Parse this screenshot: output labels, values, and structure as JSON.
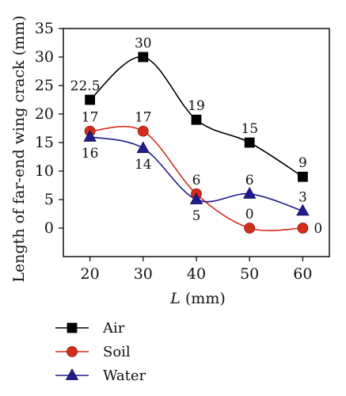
{
  "chart_data": {
    "type": "line",
    "x": [
      20,
      30,
      40,
      50,
      60
    ],
    "xlabel_var": "L",
    "xlabel_unit": " (mm)",
    "ylabel": "Length of far-end wing crack (mm)",
    "xlim": [
      15,
      65
    ],
    "ylim": [
      -5,
      35
    ],
    "xticks": [
      20,
      30,
      40,
      50,
      60
    ],
    "yticks": [
      0,
      5,
      10,
      15,
      20,
      25,
      30,
      35
    ],
    "grid": false,
    "legend_position": "bottom-left, below plot",
    "series": [
      {
        "name": "Air",
        "values": [
          22.5,
          30,
          19,
          15,
          9
        ],
        "labels": [
          "22.5",
          "30",
          "19",
          "15",
          "9"
        ],
        "label_pos": [
          "above",
          "above",
          "above",
          "above",
          "above"
        ],
        "color": "#000000",
        "marker": "square"
      },
      {
        "name": "Soil",
        "values": [
          17,
          17,
          6,
          0,
          0
        ],
        "labels": [
          "17",
          "17",
          "6",
          "0",
          "0"
        ],
        "label_pos": [
          "above",
          "above",
          "above",
          "above",
          "right"
        ],
        "color": "#d62d1a",
        "marker": "circle"
      },
      {
        "name": "Water",
        "values": [
          16,
          14,
          5,
          6,
          3
        ],
        "labels": [
          "16",
          "14",
          "5",
          "6",
          "3"
        ],
        "label_pos": [
          "below",
          "below",
          "below",
          "above",
          "above"
        ],
        "color": "#1f1b8f",
        "marker": "triangle"
      }
    ]
  }
}
